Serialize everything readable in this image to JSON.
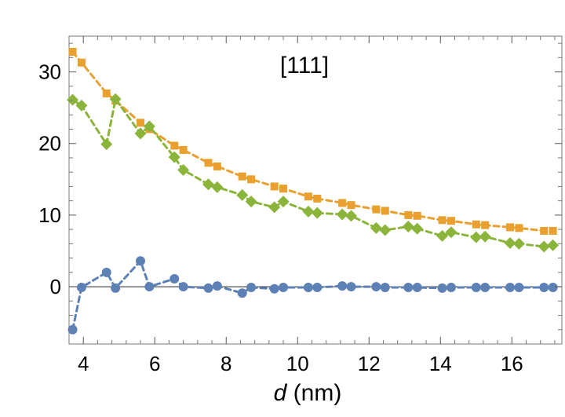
{
  "chart_data": {
    "type": "scatter",
    "annotation": "[111]",
    "xlabel_var": "d",
    "xlabel_unit": " (nm)",
    "xlim": [
      3.6,
      17.4
    ],
    "ylim": [
      -8,
      35
    ],
    "x_ticks": [
      4,
      6,
      8,
      10,
      12,
      14,
      16
    ],
    "y_ticks": [
      0,
      10,
      20,
      30
    ],
    "x_tick_labels": [
      "4",
      "6",
      "8",
      "10",
      "12",
      "14",
      "16"
    ],
    "y_tick_labels": [
      "0",
      "10",
      "20",
      "30"
    ],
    "series": [
      {
        "name": "orange-squares",
        "color": "#E9A02F",
        "marker": "square",
        "x": [
          3.7,
          3.95,
          4.65,
          4.9,
          5.6,
          5.85,
          6.55,
          6.8,
          7.5,
          7.75,
          8.45,
          8.7,
          9.35,
          9.6,
          10.3,
          10.55,
          11.25,
          11.5,
          12.2,
          12.45,
          13.1,
          13.35,
          14.05,
          14.3,
          15.0,
          15.25,
          15.95,
          16.2,
          16.9,
          17.15
        ],
        "values": [
          32.8,
          31.3,
          27.0,
          26.0,
          22.9,
          22.0,
          19.7,
          19.1,
          17.3,
          16.8,
          15.4,
          15.0,
          14.0,
          13.7,
          12.6,
          12.3,
          11.7,
          11.4,
          10.8,
          10.6,
          10.0,
          9.9,
          9.3,
          9.2,
          8.7,
          8.6,
          8.3,
          8.2,
          7.8,
          7.8
        ]
      },
      {
        "name": "green-diamonds",
        "color": "#8BB43A",
        "marker": "diamond",
        "x": [
          3.7,
          3.95,
          4.65,
          4.9,
          5.6,
          5.85,
          6.55,
          6.8,
          7.5,
          7.75,
          8.45,
          8.7,
          9.35,
          9.6,
          10.3,
          10.55,
          11.25,
          11.5,
          12.2,
          12.45,
          13.1,
          13.35,
          14.05,
          14.3,
          15.0,
          15.25,
          15.95,
          16.2,
          16.9,
          17.15
        ],
        "values": [
          26.1,
          25.3,
          19.9,
          26.2,
          21.4,
          22.4,
          18.1,
          16.3,
          14.3,
          13.9,
          12.8,
          11.9,
          11.1,
          11.9,
          10.5,
          10.3,
          10.1,
          9.9,
          8.2,
          7.9,
          8.4,
          8.1,
          7.1,
          7.6,
          6.9,
          7.0,
          6.1,
          6.0,
          5.6,
          5.8
        ]
      },
      {
        "name": "blue-circles",
        "color": "#5E81B5",
        "marker": "circle",
        "x": [
          3.7,
          3.95,
          4.65,
          4.9,
          5.6,
          5.85,
          6.55,
          6.8,
          7.5,
          7.75,
          8.45,
          8.7,
          9.35,
          9.6,
          10.3,
          10.55,
          11.25,
          11.5,
          12.2,
          12.45,
          13.1,
          13.35,
          14.05,
          14.3,
          15.0,
          15.25,
          15.95,
          16.2,
          16.9,
          17.15
        ],
        "values": [
          -6.0,
          -0.1,
          2.0,
          -0.2,
          3.6,
          0.0,
          1.1,
          0.0,
          -0.2,
          0.1,
          -0.9,
          -0.1,
          -0.3,
          -0.1,
          -0.1,
          -0.1,
          0.1,
          0.0,
          0.0,
          -0.1,
          -0.1,
          -0.1,
          -0.2,
          -0.1,
          -0.1,
          -0.1,
          -0.1,
          -0.1,
          -0.1,
          -0.1
        ]
      }
    ]
  }
}
